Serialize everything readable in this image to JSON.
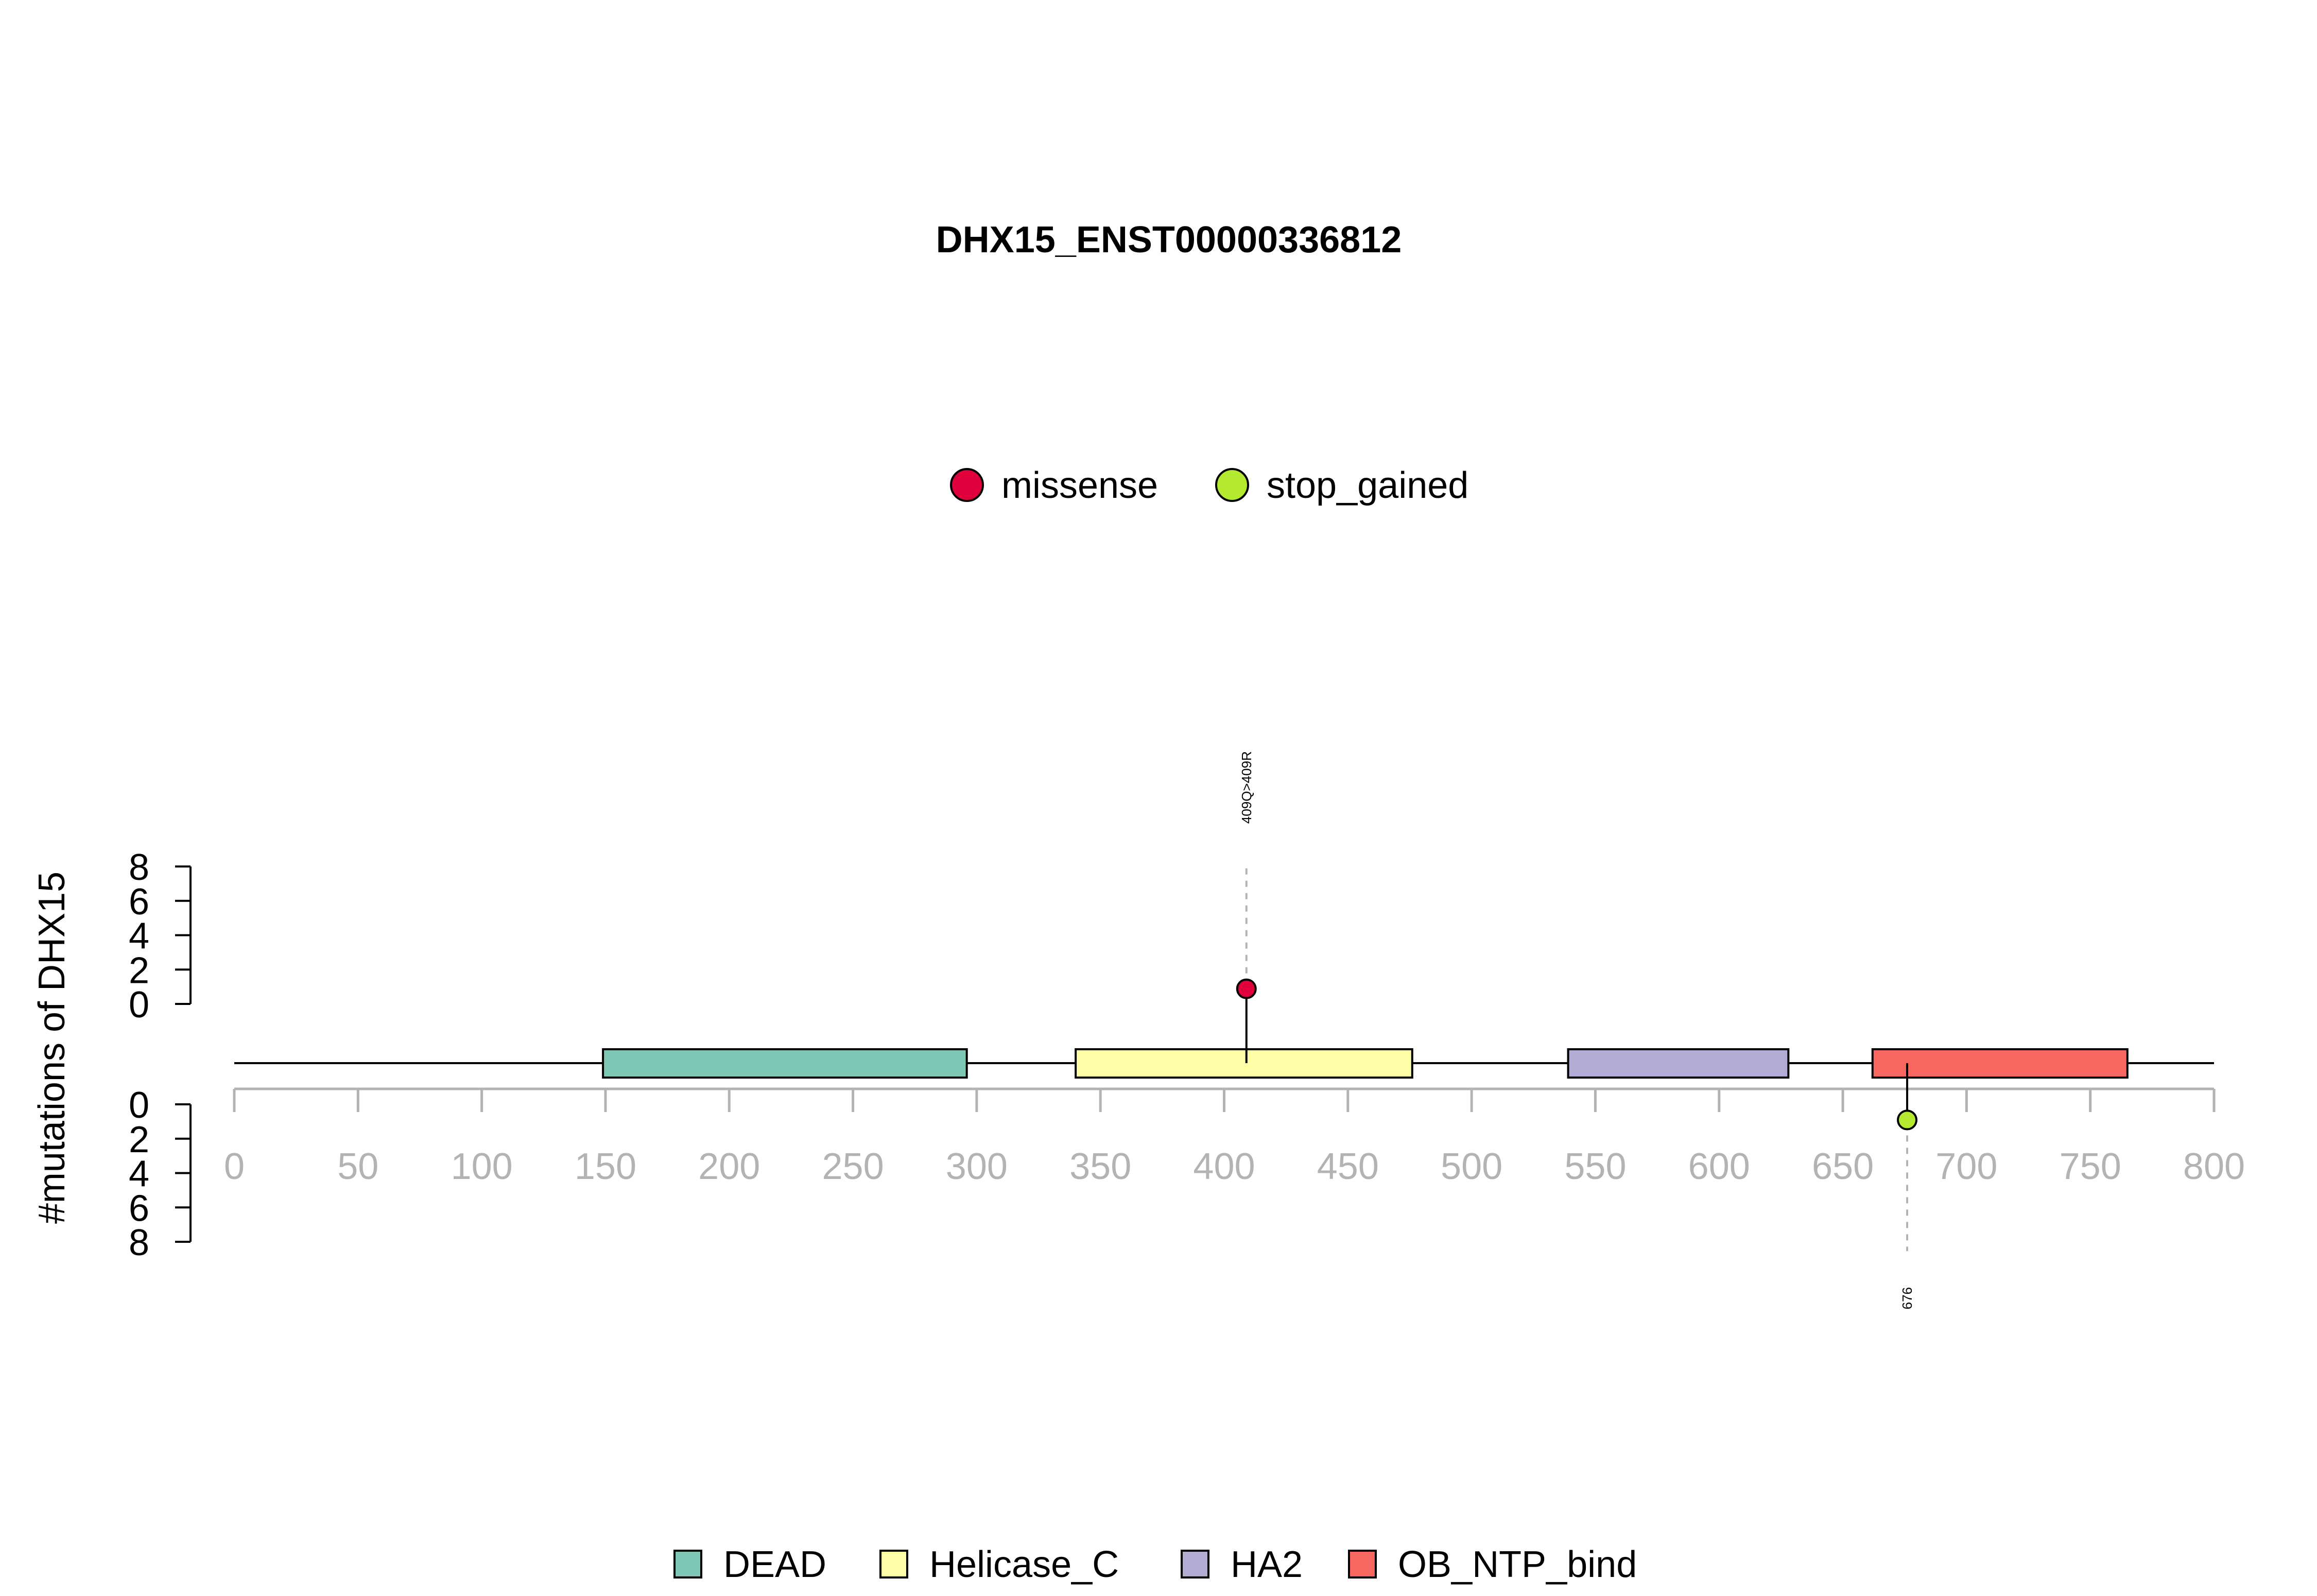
{
  "chart_data": {
    "type": "lollipop",
    "title": "DHX15_ENST00000336812",
    "ylabel": "#mutations of DHX15",
    "xlim": [
      0,
      800
    ],
    "xticks": [
      0,
      50,
      100,
      150,
      200,
      250,
      300,
      350,
      400,
      450,
      500,
      550,
      600,
      650,
      700,
      750,
      800
    ],
    "ylim_upper": [
      0,
      8
    ],
    "ylim_lower": [
      0,
      8
    ],
    "yticks_upper": [
      8,
      6,
      4,
      2,
      0
    ],
    "yticks_lower": [
      0,
      2,
      4,
      6,
      8
    ],
    "mutation_types": [
      {
        "name": "missense",
        "color": "#e0003c"
      },
      {
        "name": "stop_gained",
        "color": "#b3ea2f"
      }
    ],
    "domains": [
      {
        "name": "DEAD",
        "start": 149,
        "end": 296,
        "color": "#7fc8b6"
      },
      {
        "name": "Helicase_C",
        "start": 340,
        "end": 476,
        "color": "#ffffa8"
      },
      {
        "name": "HA2",
        "start": 539,
        "end": 628,
        "color": "#b2acd4"
      },
      {
        "name": "OB_NTP_bind",
        "start": 662,
        "end": 765,
        "color": "#f8675f"
      }
    ],
    "mutations": [
      {
        "position": 409,
        "count": 1,
        "type": "missense",
        "side": "top",
        "label": "409Q>409R"
      },
      {
        "position": 676,
        "count": 1,
        "type": "stop_gained",
        "side": "bottom",
        "label": "676"
      }
    ]
  }
}
